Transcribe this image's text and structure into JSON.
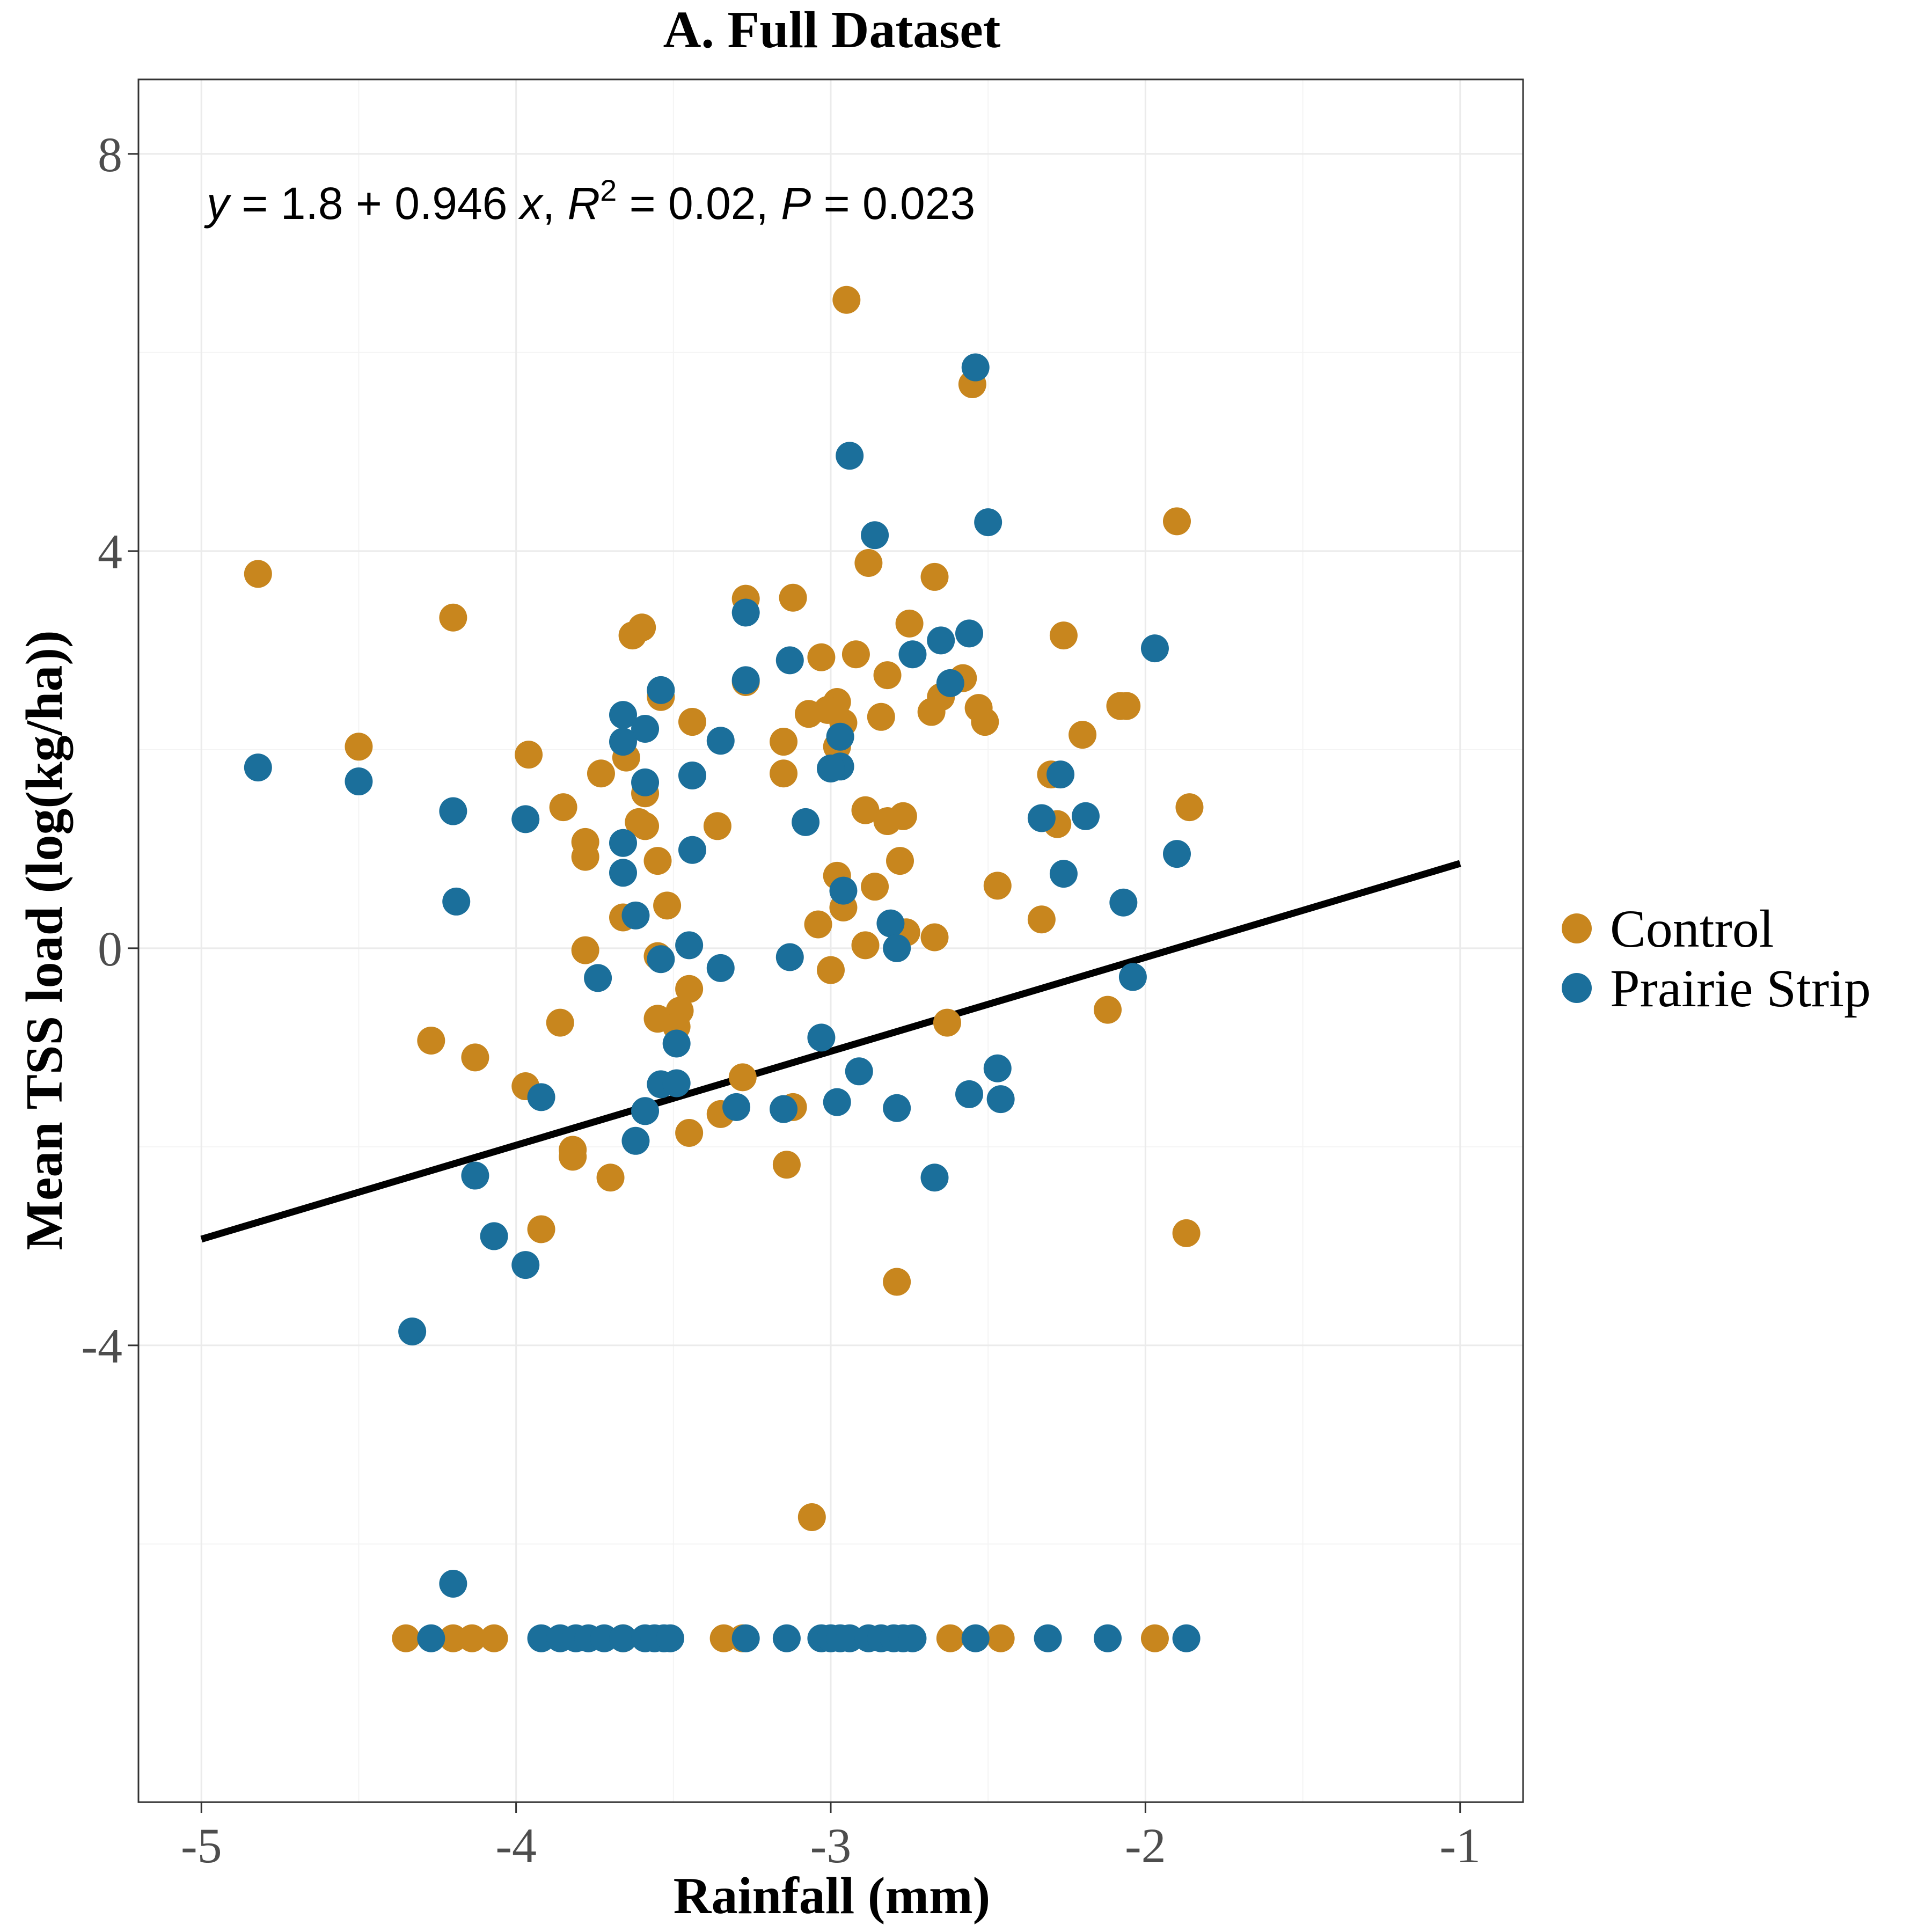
{
  "chart_data": {
    "type": "scatter",
    "title": "A. Full Dataset",
    "xlabel": "Rainfall (mm)",
    "ylabel": "Mean TSS load (log(kg/ha))",
    "xlim": [
      -5.2,
      -0.8
    ],
    "ylim": [
      -8.6,
      8.75
    ],
    "x_ticks": [
      -5,
      -4,
      -3,
      -2,
      -1
    ],
    "x_tick_labels": [
      "-5",
      "-4",
      "-3",
      "-2",
      "-1"
    ],
    "y_ticks": [
      -4,
      0,
      4,
      8
    ],
    "y_tick_labels": [
      "-4",
      "0",
      "4",
      "8"
    ],
    "grid": true,
    "legend_position": "right",
    "annotation": {
      "y_var": "y",
      "eq_middle": " = 1.8 + 0.946 ",
      "x_var": "x",
      "sep1": ", ",
      "r_var": "R",
      "r_sup": "2",
      "r_rest": " = 0.02, ",
      "p_var": "P",
      "p_rest": " = 0.023"
    },
    "regression": {
      "intercept": 1.8,
      "slope": 0.946,
      "x_range": [
        -5.0,
        -1.0
      ]
    },
    "series": [
      {
        "name": "Control",
        "color": "#C8861E",
        "points": [
          [
            -2.95,
            6.53
          ],
          [
            -2.55,
            5.68
          ],
          [
            -1.9,
            4.3
          ],
          [
            -4.82,
            3.77
          ],
          [
            -2.88,
            3.88
          ],
          [
            -2.67,
            3.74
          ],
          [
            -3.27,
            3.52
          ],
          [
            -3.12,
            3.53
          ],
          [
            -4.2,
            3.33
          ],
          [
            -2.75,
            3.27
          ],
          [
            -3.6,
            3.23
          ],
          [
            -3.63,
            3.15
          ],
          [
            -2.26,
            3.15
          ],
          [
            -2.92,
            2.96
          ],
          [
            -3.03,
            2.93
          ],
          [
            -2.82,
            2.75
          ],
          [
            -2.58,
            2.72
          ],
          [
            -3.27,
            2.68
          ],
          [
            -2.65,
            2.53
          ],
          [
            -2.98,
            2.48
          ],
          [
            -3.01,
            2.4
          ],
          [
            -2.53,
            2.42
          ],
          [
            -2.06,
            2.44
          ],
          [
            -2.08,
            2.44
          ],
          [
            -3.07,
            2.36
          ],
          [
            -2.68,
            2.38
          ],
          [
            -2.84,
            2.33
          ],
          [
            -2.51,
            2.28
          ],
          [
            -2.96,
            2.27
          ],
          [
            -3.44,
            2.28
          ],
          [
            -4.5,
            2.03
          ],
          [
            -3.15,
            2.08
          ],
          [
            -3.96,
            1.95
          ],
          [
            -3.65,
            1.92
          ],
          [
            -2.98,
            2.03
          ],
          [
            -2.2,
            2.15
          ],
          [
            -3.73,
            1.76
          ],
          [
            -3.15,
            1.76
          ],
          [
            -2.3,
            1.75
          ],
          [
            -3.85,
            1.42
          ],
          [
            -1.86,
            1.42
          ],
          [
            -2.89,
            1.39
          ],
          [
            -2.77,
            1.33
          ],
          [
            -3.61,
            1.27
          ],
          [
            -3.36,
            1.23
          ],
          [
            -2.82,
            1.28
          ],
          [
            -2.28,
            1.25
          ],
          [
            -3.59,
            1.23
          ],
          [
            -3.78,
            1.07
          ],
          [
            -3.78,
            0.92
          ],
          [
            -3.55,
            0.88
          ],
          [
            -2.78,
            0.88
          ],
          [
            -2.98,
            0.73
          ],
          [
            -2.47,
            0.63
          ],
          [
            -2.86,
            0.62
          ],
          [
            -3.59,
            1.56
          ],
          [
            -2.96,
            0.41
          ],
          [
            -3.52,
            0.43
          ],
          [
            -3.66,
            0.31
          ],
          [
            -2.33,
            0.29
          ],
          [
            -3.04,
            0.24
          ],
          [
            -2.76,
            0.16
          ],
          [
            -2.67,
            0.11
          ],
          [
            -2.89,
            0.03
          ],
          [
            -3.78,
            -0.02
          ],
          [
            -3.55,
            -0.08
          ],
          [
            -3.0,
            -0.22
          ],
          [
            -3.45,
            -0.41
          ],
          [
            -3.48,
            -0.63
          ],
          [
            -3.55,
            -0.71
          ],
          [
            -3.86,
            -0.75
          ],
          [
            -2.63,
            -0.75
          ],
          [
            -2.12,
            -0.62
          ],
          [
            -3.49,
            -0.79
          ],
          [
            -4.27,
            -0.93
          ],
          [
            -4.13,
            -1.1
          ],
          [
            -3.28,
            -1.3
          ],
          [
            -3.97,
            -1.39
          ],
          [
            -3.12,
            -1.6
          ],
          [
            -3.35,
            -1.67
          ],
          [
            -3.45,
            -1.86
          ],
          [
            -3.82,
            -2.03
          ],
          [
            -3.82,
            -2.1
          ],
          [
            -3.7,
            -2.31
          ],
          [
            -3.14,
            -2.18
          ],
          [
            -3.92,
            -2.83
          ],
          [
            -1.87,
            -2.87
          ],
          [
            -2.79,
            -3.36
          ],
          [
            -3.06,
            -5.73
          ],
          [
            -3.54,
            2.53
          ],
          [
            -4.35,
            -6.95
          ],
          [
            -4.2,
            -6.95
          ],
          [
            -4.14,
            -6.95
          ],
          [
            -4.07,
            -6.95
          ],
          [
            -3.66,
            -6.95
          ],
          [
            -3.34,
            -6.95
          ],
          [
            -3.28,
            -6.95
          ],
          [
            -2.62,
            -6.95
          ],
          [
            -2.46,
            -6.95
          ],
          [
            -1.97,
            -6.95
          ]
        ]
      },
      {
        "name": "Prairie Strip",
        "color": "#1B6F9B",
        "points": [
          [
            -2.54,
            5.85
          ],
          [
            -2.94,
            4.96
          ],
          [
            -2.86,
            4.16
          ],
          [
            -2.5,
            4.29
          ],
          [
            -3.27,
            3.38
          ],
          [
            -2.56,
            3.17
          ],
          [
            -2.65,
            3.1
          ],
          [
            -1.97,
            3.02
          ],
          [
            -2.74,
            2.96
          ],
          [
            -3.13,
            2.9
          ],
          [
            -3.27,
            2.7
          ],
          [
            -2.62,
            2.67
          ],
          [
            -3.54,
            2.6
          ],
          [
            -3.66,
            2.35
          ],
          [
            -3.59,
            2.21
          ],
          [
            -3.66,
            2.08
          ],
          [
            -3.35,
            2.09
          ],
          [
            -2.97,
            2.13
          ],
          [
            -4.82,
            1.82
          ],
          [
            -2.97,
            1.83
          ],
          [
            -3.0,
            1.81
          ],
          [
            -4.5,
            1.68
          ],
          [
            -3.44,
            1.74
          ],
          [
            -3.59,
            1.67
          ],
          [
            -2.27,
            1.75
          ],
          [
            -4.2,
            1.38
          ],
          [
            -2.19,
            1.33
          ],
          [
            -3.97,
            1.3
          ],
          [
            -2.33,
            1.31
          ],
          [
            -3.08,
            1.27
          ],
          [
            -3.66,
            1.06
          ],
          [
            -3.44,
            0.99
          ],
          [
            -1.9,
            0.95
          ],
          [
            -3.66,
            0.76
          ],
          [
            -2.26,
            0.75
          ],
          [
            -2.96,
            0.58
          ],
          [
            -4.19,
            0.47
          ],
          [
            -2.07,
            0.46
          ],
          [
            -3.62,
            0.33
          ],
          [
            -2.81,
            0.25
          ],
          [
            -3.45,
            0.03
          ],
          [
            -2.79,
            0.0
          ],
          [
            -3.13,
            -0.09
          ],
          [
            -3.54,
            -0.11
          ],
          [
            -3.35,
            -0.2
          ],
          [
            -3.74,
            -0.3
          ],
          [
            -2.04,
            -0.29
          ],
          [
            -3.03,
            -0.9
          ],
          [
            -3.49,
            -0.96
          ],
          [
            -2.47,
            -1.21
          ],
          [
            -2.91,
            -1.24
          ],
          [
            -3.54,
            -1.37
          ],
          [
            -3.49,
            -1.36
          ],
          [
            -2.56,
            -1.47
          ],
          [
            -2.46,
            -1.52
          ],
          [
            -3.92,
            -1.5
          ],
          [
            -2.98,
            -1.55
          ],
          [
            -3.3,
            -1.6
          ],
          [
            -3.15,
            -1.62
          ],
          [
            -3.59,
            -1.64
          ],
          [
            -2.79,
            -1.61
          ],
          [
            -3.62,
            -1.94
          ],
          [
            -4.13,
            -2.29
          ],
          [
            -2.67,
            -2.31
          ],
          [
            -4.07,
            -2.9
          ],
          [
            -3.97,
            -3.19
          ],
          [
            -4.33,
            -3.86
          ],
          [
            -4.2,
            -6.4
          ],
          [
            -4.27,
            -6.95
          ],
          [
            -3.92,
            -6.95
          ],
          [
            -3.86,
            -6.95
          ],
          [
            -3.81,
            -6.95
          ],
          [
            -3.77,
            -6.95
          ],
          [
            -3.72,
            -6.95
          ],
          [
            -3.66,
            -6.95
          ],
          [
            -3.59,
            -6.95
          ],
          [
            -3.56,
            -6.95
          ],
          [
            -3.53,
            -6.95
          ],
          [
            -3.51,
            -6.95
          ],
          [
            -3.27,
            -6.95
          ],
          [
            -3.14,
            -6.95
          ],
          [
            -3.03,
            -6.95
          ],
          [
            -3.0,
            -6.95
          ],
          [
            -2.97,
            -6.95
          ],
          [
            -2.94,
            -6.95
          ],
          [
            -2.88,
            -6.95
          ],
          [
            -2.84,
            -6.95
          ],
          [
            -2.8,
            -6.95
          ],
          [
            -2.77,
            -6.95
          ],
          [
            -2.74,
            -6.95
          ],
          [
            -2.54,
            -6.95
          ],
          [
            -2.31,
            -6.95
          ],
          [
            -2.12,
            -6.95
          ],
          [
            -1.87,
            -6.95
          ]
        ]
      }
    ]
  }
}
